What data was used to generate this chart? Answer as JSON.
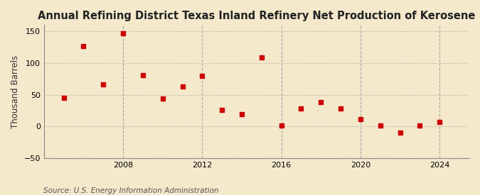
{
  "title": "Annual Refining District Texas Inland Refinery Net Production of Kerosene",
  "ylabel": "Thousand Barrels",
  "source": "Source: U.S. Energy Information Administration",
  "background_color": "#f5e9cc",
  "years": [
    2005,
    2006,
    2007,
    2008,
    2009,
    2010,
    2011,
    2012,
    2013,
    2014,
    2015,
    2016,
    2017,
    2018,
    2019,
    2020,
    2021,
    2022,
    2023,
    2024
  ],
  "values": [
    45,
    127,
    66,
    147,
    81,
    44,
    63,
    80,
    26,
    19,
    109,
    2,
    28,
    38,
    28,
    12,
    2,
    -10,
    2,
    7
  ],
  "marker_color": "#cc0000",
  "marker_size": 22,
  "ylim": [
    -50,
    160
  ],
  "yticks": [
    -50,
    0,
    50,
    100,
    150
  ],
  "xticks": [
    2008,
    2012,
    2016,
    2020,
    2024
  ],
  "grid_color": "#aaaaaa",
  "title_fontsize": 10.5,
  "label_fontsize": 8.5,
  "tick_fontsize": 8,
  "source_fontsize": 7.5
}
